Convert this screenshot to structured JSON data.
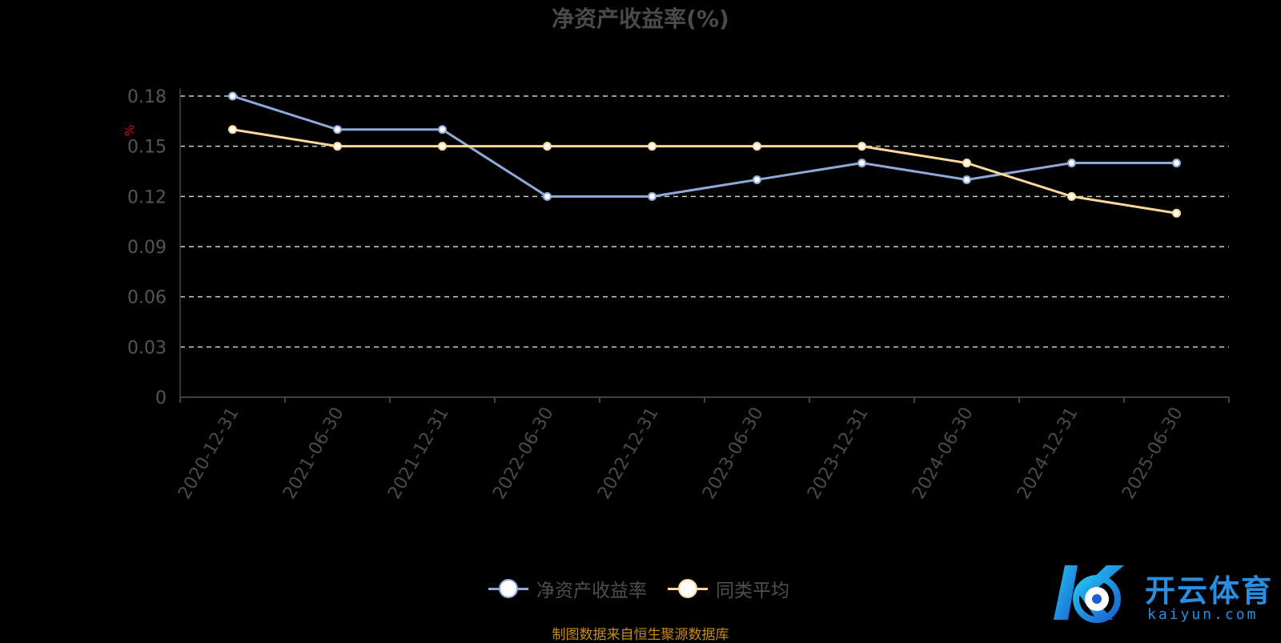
{
  "chart_data": {
    "type": "line",
    "title": "净资产收益率(%)",
    "ylabel": "%",
    "xlabel": "",
    "categories": [
      "2020-12-31",
      "2021-06-30",
      "2021-12-31",
      "2022-06-30",
      "2022-12-31",
      "2023-06-30",
      "2023-12-31",
      "2024-06-30",
      "2024-12-31",
      "2025-06-30"
    ],
    "ylim": [
      0,
      0.18
    ],
    "yticks": [
      "0",
      "0.03",
      "0.06",
      "0.09",
      "0.12",
      "0.15",
      "0.18"
    ],
    "grid": true,
    "legend_position": "bottom-center",
    "series": [
      {
        "name": "净资产收益率",
        "color": "#8fa9d8",
        "values": [
          0.18,
          0.16,
          0.16,
          0.12,
          0.12,
          0.13,
          0.14,
          0.13,
          0.14,
          0.14
        ]
      },
      {
        "name": "同类平均",
        "color": "#ffd89a",
        "values": [
          0.16,
          0.15,
          0.15,
          0.15,
          0.15,
          0.15,
          0.15,
          0.14,
          0.12,
          0.11
        ]
      }
    ]
  },
  "source_note": "制图数据来自恒生聚源数据库",
  "watermark": {
    "text": "开云体育",
    "sub": "kaiyun.com"
  }
}
